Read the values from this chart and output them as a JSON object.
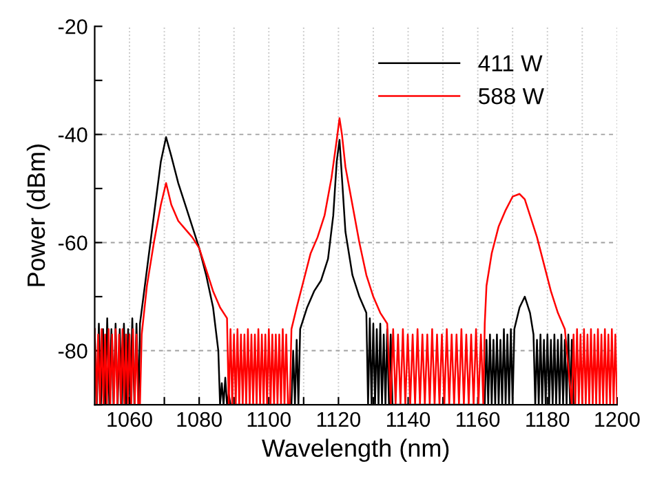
{
  "chart_data": {
    "type": "line",
    "xlabel": "Wavelength (nm)",
    "ylabel": "Power (dBm)",
    "xlim": [
      1050,
      1200
    ],
    "ylim": [
      -90,
      -20
    ],
    "xticks": [
      1060,
      {
        "value": 1070,
        "label": null
      },
      1080,
      {
        "value": 1090,
        "label": null
      },
      1100,
      {
        "value": 1110,
        "label": null
      },
      1120,
      {
        "value": 1130,
        "label": null
      },
      1140,
      {
        "value": 1150,
        "label": null
      },
      1160,
      {
        "value": 1170,
        "label": null
      },
      1180,
      {
        "value": 1190,
        "label": null
      },
      1200
    ],
    "yticks": [
      -20,
      {
        "value": -30,
        "label": null
      },
      -40,
      {
        "value": -50,
        "label": null
      },
      -60,
      {
        "value": -70,
        "label": null
      },
      -80,
      {
        "value": -90,
        "label": null
      }
    ],
    "grid": true,
    "legend": "top right",
    "line_style": "solid",
    "marker": "none",
    "series": [
      {
        "name": "411 W",
        "color": "#000000",
        "x": [
          1050,
          1050.6,
          1051.2,
          1051.8,
          1052.4,
          1053,
          1053.6,
          1054.2,
          1054.8,
          1055.4,
          1056,
          1056.6,
          1057.2,
          1057.8,
          1058.4,
          1059,
          1059.6,
          1060.2,
          1060.8,
          1061.4,
          1062,
          1062.6,
          1063,
          1065,
          1067,
          1069,
          1070.5,
          1072,
          1074,
          1076,
          1078,
          1080,
          1082,
          1084,
          1085.5,
          1086,
          1086.5,
          1087,
          1087.5,
          1088,
          1088.5,
          1089,
          1106.5,
          1107,
          1107.5,
          1108,
          1108.5,
          1109,
          1111,
          1113,
          1115,
          1117,
          1118.5,
          1119.5,
          1120.3,
          1121,
          1122,
          1124,
          1126,
          1128,
          1128.5,
          1129,
          1129.5,
          1130,
          1130.5,
          1131,
          1131.5,
          1132,
          1132.5,
          1133,
          1133.5,
          1134,
          1134.5,
          1135,
          1135.5,
          1162,
          1162.5,
          1163,
          1163.5,
          1164,
          1164.5,
          1165,
          1165.5,
          1166,
          1166.5,
          1167,
          1167.5,
          1168,
          1168.5,
          1169,
          1169.5,
          1170,
          1170.5,
          1172,
          1173.5,
          1175,
          1176,
          1176.5,
          1177,
          1177.5,
          1178,
          1178.5,
          1179,
          1179.5,
          1180,
          1180.5,
          1181,
          1181.5,
          1182,
          1182.5,
          1183,
          1183.5,
          1184,
          1184.5,
          1185,
          1185.5,
          1186,
          1186.5,
          1187,
          1187.5
        ],
        "values": [
          -76,
          -90,
          -75,
          -90,
          -76,
          -90,
          -74,
          -90,
          -76,
          -90,
          -75,
          -90,
          -76,
          -90,
          -75,
          -90,
          -76,
          -90,
          -74,
          -90,
          -75,
          -90,
          -75,
          -65,
          -55,
          -45,
          -40.5,
          -44,
          -49,
          -53,
          -57,
          -61,
          -66,
          -72,
          -80,
          -90,
          -86,
          -90,
          -85,
          -90,
          -88,
          -90,
          -90,
          -80,
          -90,
          -78,
          -90,
          -76,
          -72,
          -69,
          -67,
          -63,
          -55,
          -45,
          -41,
          -48,
          -58,
          -66,
          -70,
          -73,
          -90,
          -74,
          -90,
          -75,
          -90,
          -76,
          -90,
          -75,
          -90,
          -77,
          -90,
          -76,
          -90,
          -77,
          -90,
          -90,
          -78,
          -90,
          -77,
          -90,
          -78,
          -90,
          -77,
          -90,
          -78,
          -90,
          -76,
          -90,
          -77,
          -90,
          -76,
          -90,
          -76,
          -72,
          -70,
          -73,
          -77,
          -90,
          -78,
          -90,
          -77,
          -90,
          -78,
          -90,
          -77,
          -90,
          -78,
          -90,
          -77,
          -90,
          -78,
          -90,
          -77,
          -90,
          -78,
          -90,
          -77,
          -90,
          -78,
          -90
        ]
      },
      {
        "name": "588 W",
        "color": "#ff0000",
        "x": [
          1050,
          1050.5,
          1051,
          1051.5,
          1052,
          1052.5,
          1053,
          1053.5,
          1054,
          1054.5,
          1055,
          1055.5,
          1056,
          1056.5,
          1057,
          1057.5,
          1058,
          1058.5,
          1059,
          1059.5,
          1060,
          1060.5,
          1061,
          1061.5,
          1062,
          1062.5,
          1063,
          1063.5,
          1065,
          1067,
          1069,
          1070.5,
          1072,
          1074,
          1076,
          1078,
          1080,
          1082,
          1084,
          1086,
          1088,
          1088.5,
          1089,
          1089.5,
          1090,
          1090.5,
          1091,
          1091.5,
          1092,
          1092.5,
          1093,
          1093.5,
          1094,
          1094.5,
          1095,
          1095.5,
          1096,
          1096.5,
          1097,
          1097.5,
          1098,
          1098.5,
          1099,
          1099.5,
          1100,
          1100.5,
          1101,
          1101.5,
          1102,
          1102.5,
          1103,
          1103.5,
          1104,
          1104.5,
          1105,
          1105.5,
          1106,
          1106.5,
          1108,
          1110,
          1112,
          1114,
          1116,
          1118,
          1119.5,
          1120.3,
          1121,
          1122,
          1124,
          1126,
          1128,
          1130,
          1132,
          1134,
          1135,
          1135.7,
          1136.4,
          1137.1,
          1137.8,
          1138.5,
          1139.2,
          1139.9,
          1140.6,
          1141.3,
          1142,
          1142.7,
          1143.4,
          1144.1,
          1144.8,
          1145.5,
          1146.2,
          1146.9,
          1147.6,
          1148.3,
          1149,
          1149.7,
          1150.4,
          1151.1,
          1151.8,
          1152.5,
          1153.2,
          1153.9,
          1154.6,
          1155.3,
          1156,
          1156.7,
          1157.4,
          1158.1,
          1158.8,
          1159.5,
          1160.2,
          1160.9,
          1161.6,
          1162,
          1162.5,
          1164,
          1166,
          1168,
          1170,
          1172,
          1173.5,
          1175,
          1177,
          1179,
          1181,
          1183,
          1185,
          1187,
          1187.5,
          1188,
          1188.5,
          1189,
          1189.5,
          1190,
          1190.5,
          1191,
          1191.5,
          1192,
          1192.5,
          1193,
          1193.5,
          1194,
          1194.5,
          1195,
          1195.5,
          1196,
          1196.5,
          1197,
          1197.5,
          1198,
          1198.5,
          1199,
          1199.5,
          1200
        ],
        "values": [
          -76,
          -90,
          -77,
          -90,
          -76,
          -90,
          -77,
          -90,
          -76,
          -90,
          -77,
          -90,
          -76,
          -90,
          -77,
          -90,
          -76,
          -90,
          -77,
          -90,
          -77,
          -90,
          -76,
          -90,
          -77,
          -90,
          -90,
          -77,
          -68,
          -60,
          -53,
          -49,
          -53,
          -56,
          -57.5,
          -59,
          -61,
          -65,
          -69,
          -72,
          -74,
          -90,
          -76,
          -90,
          -77,
          -90,
          -76,
          -90,
          -77,
          -90,
          -77,
          -90,
          -76,
          -90,
          -77,
          -90,
          -77,
          -90,
          -76,
          -90,
          -77,
          -90,
          -77,
          -90,
          -76,
          -90,
          -77,
          -90,
          -77,
          -90,
          -77,
          -90,
          -76,
          -90,
          -77,
          -90,
          -90,
          -76,
          -72,
          -67,
          -62,
          -59,
          -55,
          -48,
          -41,
          -37,
          -40,
          -46,
          -53,
          -60,
          -66,
          -70,
          -73,
          -75,
          -90,
          -76,
          -90,
          -77,
          -90,
          -76,
          -90,
          -77,
          -90,
          -77,
          -90,
          -76,
          -90,
          -77,
          -90,
          -77,
          -90,
          -76,
          -90,
          -77,
          -90,
          -77,
          -90,
          -76,
          -90,
          -77,
          -90,
          -77,
          -90,
          -76,
          -90,
          -77,
          -90,
          -77,
          -90,
          -76,
          -90,
          -77,
          -90,
          -75,
          -68,
          -62,
          -57,
          -54,
          -51.5,
          -51,
          -52,
          -55,
          -59,
          -64,
          -69,
          -73,
          -76,
          -90,
          -77,
          -90,
          -76,
          -90,
          -77,
          -90,
          -76,
          -90,
          -77,
          -90,
          -76,
          -90,
          -77,
          -90,
          -76,
          -90,
          -77,
          -90,
          -76,
          -90,
          -77,
          -90,
          -76,
          -90,
          -77,
          -90
        ]
      }
    ]
  }
}
